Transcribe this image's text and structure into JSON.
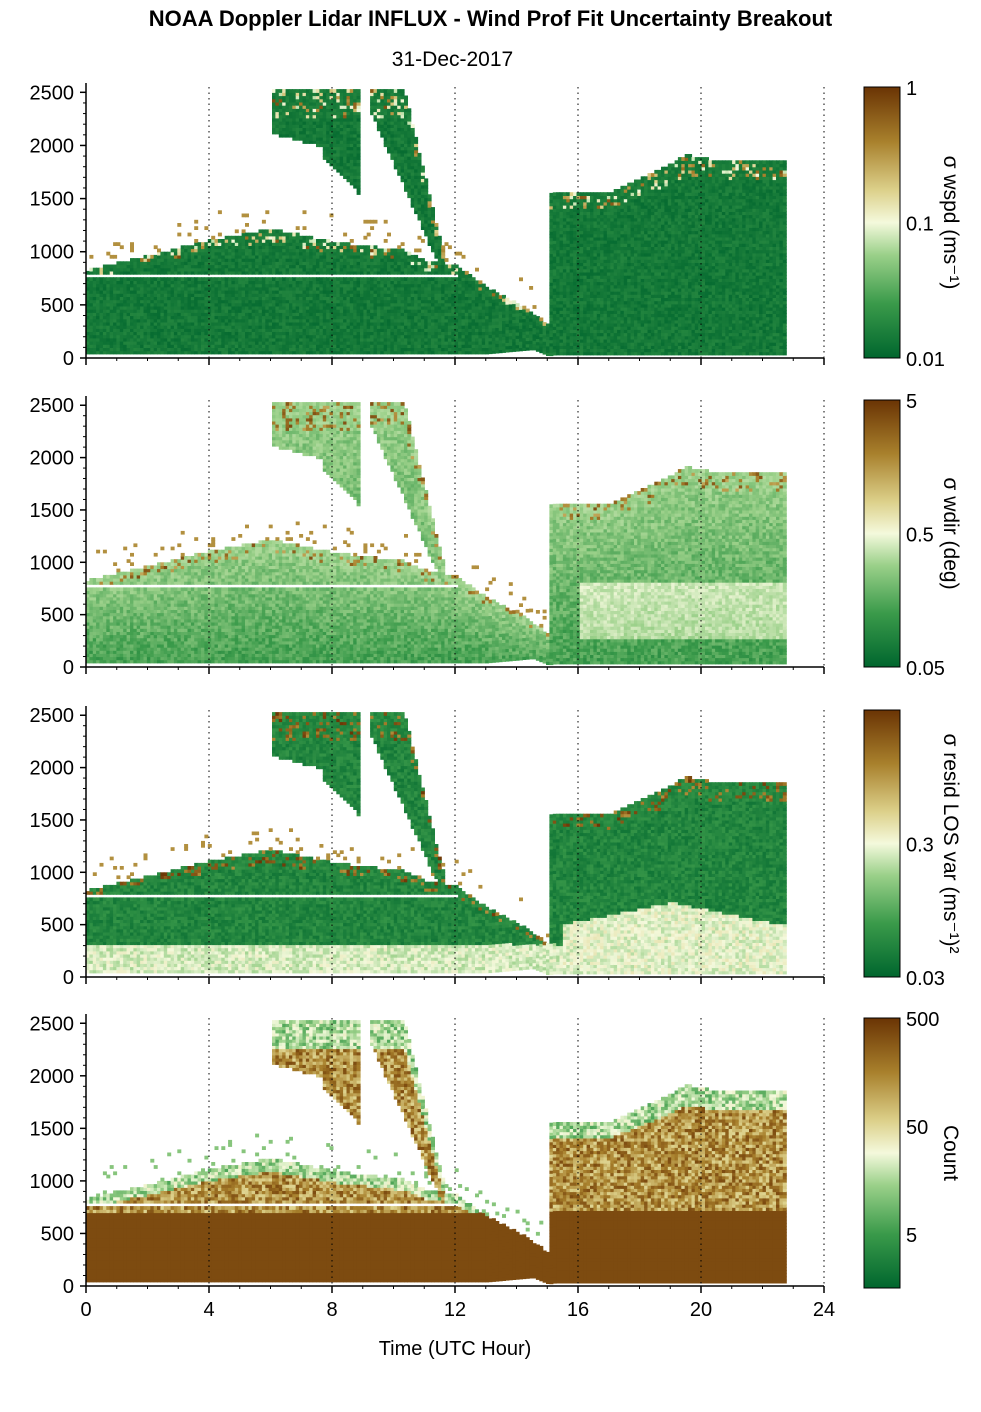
{
  "title": "NOAA Doppler Lidar INFLUX - Wind Prof Fit Uncertainty Breakout",
  "subtitle": "31-Dec-2017",
  "colors": {
    "low": "#00662e",
    "mid": "#f4f9dc",
    "high": "#6a3404",
    "grid": "#000000"
  },
  "chart_data": {
    "type": "heatmap",
    "xlabel": "Time (UTC Hour)",
    "x_ticks": [
      0,
      4,
      8,
      12,
      16,
      20,
      24
    ],
    "x_range": [
      0,
      24
    ],
    "y_ticks": [
      0,
      500,
      1000,
      1500,
      2000,
      2500
    ],
    "y_range": [
      0,
      2550
    ],
    "grid": "vertical dotted lines at 4-hour ticks",
    "shared_x": true,
    "data_extent": {
      "x_start": 0,
      "x_end": 22.7,
      "lower_height_at_hour": [
        [
          0,
          40
        ],
        [
          13,
          40
        ],
        [
          14.5,
          80
        ],
        [
          15,
          20
        ],
        [
          15.2,
          30
        ],
        [
          22.7,
          30
        ]
      ],
      "upper_height_at_hour": [
        [
          0,
          820
        ],
        [
          2,
          950
        ],
        [
          4,
          1100
        ],
        [
          6,
          1200
        ],
        [
          8,
          1080
        ],
        [
          10.3,
          1000
        ],
        [
          11,
          900
        ],
        [
          12,
          850
        ],
        [
          13,
          650
        ],
        [
          14,
          500
        ],
        [
          15,
          300
        ],
        [
          15.05,
          1550
        ],
        [
          17,
          1550
        ],
        [
          18.5,
          1750
        ],
        [
          19.5,
          1900
        ],
        [
          20.3,
          1850
        ],
        [
          21.5,
          1850
        ],
        [
          22.7,
          1850
        ]
      ],
      "plume": {
        "start_hour": 6.0,
        "end_hour": 11.6,
        "top": 2500,
        "gap_hours": [
          8.9,
          8.9
        ],
        "feature": "descending layer from 2500 m at 9-10 UTC to ~700 m at 11.5 UTC"
      },
      "white_gap_height": 750
    },
    "panels": [
      {
        "colorbar_label": "σ wspd (ms⁻¹)",
        "colorbar_ticks": [
          "1",
          "0.1",
          "0.01"
        ],
        "scale": "log",
        "range": [
          0.01,
          1
        ],
        "pattern": "mostly low (dark green) throughout; scattered high values near cloud tops",
        "typical_value": 0.012
      },
      {
        "colorbar_label": "σ wdir (deg)",
        "colorbar_ticks": [
          "5",
          "0.5",
          "0.05"
        ],
        "scale": "log",
        "range": [
          0.05,
          5
        ],
        "pattern": "dark green below, lighter green mid-levels, lighter region 300-800 m after 16 UTC",
        "typical_value": 0.08
      },
      {
        "colorbar_label": "σ resid LOS var (ms⁻¹)²",
        "colorbar_ticks": [
          "0.3",
          "0.03"
        ],
        "scale": "log",
        "range": [
          0.03,
          3
        ],
        "pattern": "pale near surface (0-300 m), dark green aloft; pale dome 0-700 m after 16 UTC",
        "typical_value": 0.04
      },
      {
        "colorbar_label": "Count",
        "colorbar_ticks": [
          "500",
          "50",
          "5"
        ],
        "scale": "log",
        "range": [
          2,
          600
        ],
        "pattern": "high counts (brown) below ~700 m and in plume; light/green values near layer tops",
        "typical_value": 500
      }
    ]
  }
}
